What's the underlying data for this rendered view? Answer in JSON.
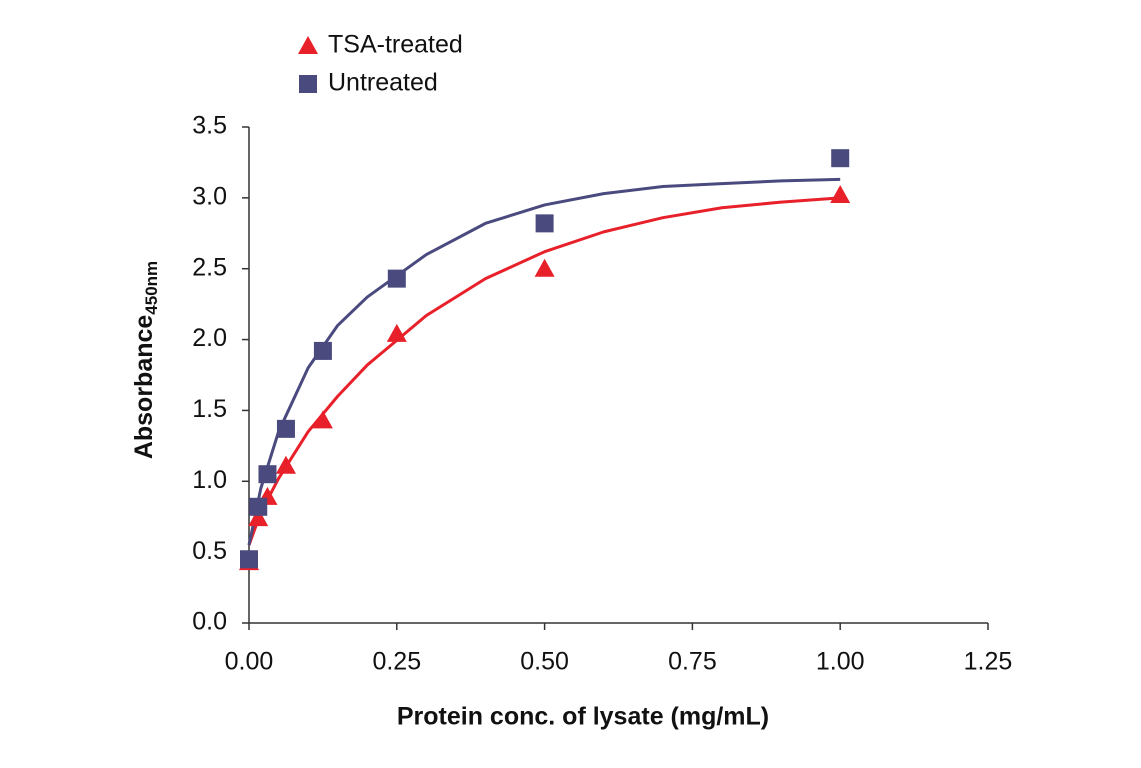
{
  "chart_data": {
    "type": "scatter",
    "xlabel": "Protein conc. of lysate (mg/mL)",
    "ylabel": "Absorbance",
    "ylabel_sub": "450nm",
    "x": [
      0,
      0.0156,
      0.03125,
      0.0625,
      0.125,
      0.25,
      0.5,
      1.0
    ],
    "fit_x": [
      0,
      0.02,
      0.05,
      0.1,
      0.15,
      0.2,
      0.3,
      0.4,
      0.5,
      0.6,
      0.7,
      0.8,
      0.9,
      1.0
    ],
    "series": [
      {
        "name": "TSA-treated",
        "color": "#e8202a",
        "marker": "triangle",
        "values": [
          0.43,
          0.74,
          0.89,
          1.11,
          1.43,
          2.04,
          2.5,
          3.02
        ],
        "fit": [
          0.55,
          0.78,
          1.02,
          1.35,
          1.6,
          1.82,
          2.17,
          2.43,
          2.62,
          2.76,
          2.86,
          2.93,
          2.97,
          3.0
        ]
      },
      {
        "name": "Untreated",
        "color": "#4a4a7f",
        "marker": "square",
        "values": [
          0.45,
          0.82,
          1.05,
          1.37,
          1.92,
          2.43,
          2.82,
          3.28
        ],
        "fit": [
          0.55,
          0.95,
          1.35,
          1.8,
          2.1,
          2.3,
          2.6,
          2.82,
          2.95,
          3.03,
          3.08,
          3.1,
          3.12,
          3.13
        ]
      }
    ],
    "xlim": [
      0,
      1.25
    ],
    "xticks": [
      {
        "value": 0,
        "label": "0.00"
      },
      {
        "value": 0.25,
        "label": "0.25"
      },
      {
        "value": 0.5,
        "label": "0.50"
      },
      {
        "value": 0.75,
        "label": "0.75"
      },
      {
        "value": 1.0,
        "label": "1.00"
      },
      {
        "value": 1.25,
        "label": "1.25"
      }
    ],
    "ylim": [
      0,
      3.5
    ],
    "yticks": [
      {
        "value": 0,
        "label": "0.0"
      },
      {
        "value": 0.5,
        "label": "0.5"
      },
      {
        "value": 1.0,
        "label": "1.0"
      },
      {
        "value": 1.5,
        "label": "1.5"
      },
      {
        "value": 2.0,
        "label": "2.0"
      },
      {
        "value": 2.5,
        "label": "2.5"
      },
      {
        "value": 3.0,
        "label": "3.0"
      },
      {
        "value": 3.5,
        "label": "3.5"
      }
    ],
    "grid": false,
    "legend": "top-left"
  }
}
